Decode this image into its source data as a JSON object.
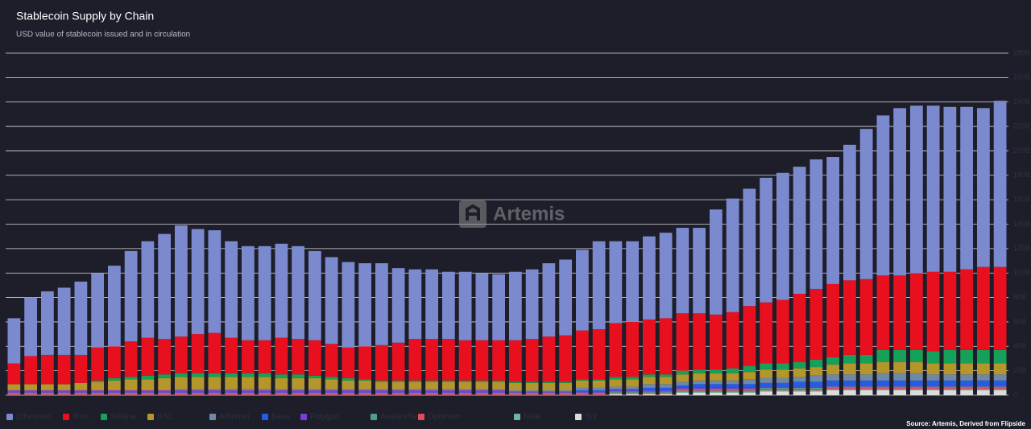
{
  "chart_data": {
    "type": "stacked_bar",
    "title": "Stablecoin Supply by Chain",
    "subtitle": "USD value of stablecoin issued and in circulation",
    "source": "Source: Artemis, Derived from Flipside",
    "watermark": "Artemis",
    "ylim": [
      0,
      280
    ],
    "yticks": [
      {
        "value": 0,
        "label": "0"
      },
      {
        "value": 20,
        "label": "20B"
      },
      {
        "value": 40,
        "label": "40B"
      },
      {
        "value": 60,
        "label": "60B"
      },
      {
        "value": 80,
        "label": "80B"
      },
      {
        "value": 100,
        "label": "100B"
      },
      {
        "value": 120,
        "label": "120B"
      },
      {
        "value": 140,
        "label": "140B"
      },
      {
        "value": 160,
        "label": "160B"
      },
      {
        "value": 180,
        "label": "180B"
      },
      {
        "value": 200,
        "label": "200B"
      },
      {
        "value": 220,
        "label": "220B"
      },
      {
        "value": 240,
        "label": "240B"
      },
      {
        "value": 260,
        "label": "260B"
      },
      {
        "value": 280,
        "label": "280B"
      }
    ],
    "grid": true,
    "series": [
      {
        "name": "Ethereum",
        "color": "#7b8acf",
        "values": [
          37,
          48,
          52,
          55,
          60,
          61,
          66,
          74,
          79,
          86,
          91,
          86,
          84,
          79,
          77,
          77,
          77,
          76,
          73,
          71,
          70,
          68,
          67,
          61,
          57,
          57,
          55,
          56,
          55,
          54,
          56,
          57,
          60,
          62,
          66,
          72,
          67,
          66,
          68,
          70,
          70,
          70,
          86,
          93,
          96,
          102,
          104,
          104,
          106,
          104,
          111,
          123,
          131,
          137,
          137,
          136,
          135,
          133,
          130,
          136
        ]
      },
      {
        "name": "Tron",
        "color": "#e8101f",
        "values": [
          17,
          23,
          24,
          24,
          23,
          27,
          26,
          29,
          31,
          29,
          30,
          32,
          33,
          29,
          27,
          27,
          30,
          29,
          29,
          27,
          25,
          27,
          29,
          31,
          34,
          34,
          34,
          33,
          33,
          33,
          34,
          35,
          37,
          38,
          40,
          41,
          44,
          45,
          45,
          46,
          47,
          46,
          45,
          46,
          49,
          50,
          52,
          56,
          58,
          60,
          61,
          62,
          61,
          61,
          63,
          65,
          64,
          66,
          68,
          68
        ]
      },
      {
        "name": "Solana",
        "color": "#17a05a",
        "values": [
          0,
          0,
          0,
          0,
          0,
          1,
          2,
          2,
          3,
          3,
          3,
          3,
          3,
          3,
          3,
          3,
          3,
          3,
          2,
          2,
          2,
          1,
          1,
          1,
          1,
          1,
          1,
          1,
          1,
          1,
          1,
          1,
          1,
          1,
          1,
          1,
          2,
          2,
          2,
          2,
          3,
          3,
          3,
          4,
          5,
          5,
          5,
          5,
          6,
          6,
          7,
          7,
          10,
          10,
          10,
          10,
          11,
          11,
          11,
          11
        ]
      },
      {
        "name": "BSC",
        "color": "#b5962b",
        "values": [
          5,
          5,
          5,
          5,
          6,
          7,
          8,
          9,
          9,
          10,
          10,
          10,
          10,
          10,
          10,
          10,
          9,
          9,
          9,
          8,
          7,
          7,
          6,
          6,
          6,
          6,
          6,
          6,
          6,
          6,
          6,
          6,
          6,
          6,
          6,
          6,
          6,
          6,
          6,
          6,
          6,
          6,
          6,
          6,
          6,
          7,
          7,
          7,
          7,
          8,
          9,
          9,
          9,
          9,
          9,
          9,
          9,
          9,
          9,
          9
        ]
      },
      {
        "name": "Arbitrum",
        "color": "#7088a8",
        "values": [
          0,
          0,
          0,
          0,
          0,
          0,
          0,
          0,
          0,
          0,
          1,
          1,
          1,
          1,
          1,
          1,
          1,
          1,
          1,
          1,
          1,
          1,
          1,
          1,
          1,
          1,
          1,
          1,
          1,
          1,
          1,
          1,
          1,
          1,
          2,
          2,
          2,
          2,
          3,
          3,
          3,
          3,
          3,
          3,
          4,
          4,
          4,
          4,
          5,
          5,
          5,
          5,
          6,
          6,
          6,
          5,
          5,
          5,
          5,
          5
        ]
      },
      {
        "name": "Base",
        "color": "#1f5fe8",
        "values": [
          0,
          0,
          0,
          0,
          0,
          0,
          0,
          0,
          0,
          0,
          0,
          0,
          0,
          0,
          0,
          0,
          0,
          0,
          0,
          0,
          0,
          0,
          0,
          0,
          0,
          0,
          0,
          0,
          0,
          0,
          0,
          0,
          0,
          0,
          1,
          1,
          1,
          1,
          2,
          2,
          2,
          3,
          3,
          3,
          3,
          3,
          3,
          4,
          4,
          4,
          4,
          4,
          4,
          4,
          4,
          4,
          4,
          4,
          4,
          4
        ]
      },
      {
        "name": "Polygon",
        "color": "#7a3fd8",
        "values": [
          2,
          2,
          2,
          2,
          2,
          2,
          2,
          2,
          2,
          2,
          2,
          2,
          2,
          2,
          2,
          2,
          2,
          2,
          2,
          2,
          2,
          2,
          2,
          2,
          2,
          2,
          2,
          2,
          2,
          2,
          1,
          1,
          1,
          1,
          1,
          1,
          1,
          1,
          1,
          1,
          1,
          1,
          1,
          1,
          1,
          1,
          1,
          1,
          1,
          1,
          1,
          1,
          1,
          1,
          1,
          1,
          1,
          1,
          1,
          1
        ]
      },
      {
        "name": "Avalanche",
        "color": "#4c9f8a",
        "values": [
          1,
          1,
          1,
          1,
          1,
          1,
          1,
          1,
          1,
          1,
          1,
          1,
          1,
          1,
          1,
          1,
          1,
          1,
          1,
          1,
          1,
          1,
          1,
          1,
          1,
          1,
          1,
          1,
          1,
          1,
          1,
          1,
          1,
          1,
          1,
          1,
          1,
          1,
          1,
          1,
          1,
          1,
          1,
          1,
          1,
          1,
          1,
          1,
          1,
          1,
          1,
          1,
          1,
          1,
          1,
          1,
          1,
          1,
          1,
          1
        ]
      },
      {
        "name": "Optimism",
        "color": "#e04c5a",
        "values": [
          1,
          1,
          1,
          1,
          1,
          1,
          1,
          1,
          1,
          1,
          1,
          1,
          1,
          1,
          1,
          1,
          1,
          1,
          1,
          1,
          1,
          1,
          1,
          1,
          1,
          1,
          1,
          1,
          1,
          1,
          1,
          1,
          1,
          1,
          1,
          1,
          1,
          1,
          1,
          1,
          1,
          1,
          1,
          1,
          1,
          1,
          1,
          1,
          1,
          1,
          1,
          1,
          1,
          1,
          1,
          1,
          1,
          1,
          1,
          1
        ]
      },
      {
        "name": "Near",
        "color": "#6fb59a",
        "values": [
          0,
          0,
          0,
          0,
          0,
          0,
          0,
          0,
          0,
          0,
          0,
          0,
          0,
          0,
          0,
          0,
          0,
          0,
          0,
          0,
          0,
          0,
          0,
          0,
          0,
          0,
          0,
          0,
          0,
          0,
          0,
          0,
          0,
          0,
          0,
          0,
          0,
          0,
          0,
          0,
          1,
          1,
          1,
          1,
          1,
          1,
          1,
          1,
          1,
          1,
          1,
          1,
          1,
          1,
          1,
          1,
          1,
          1,
          1,
          1
        ]
      },
      {
        "name": "Sui",
        "color": "#dcdcdc",
        "values": [
          0,
          0,
          0,
          0,
          0,
          0,
          0,
          0,
          0,
          0,
          0,
          0,
          0,
          0,
          0,
          0,
          0,
          0,
          0,
          0,
          0,
          0,
          0,
          0,
          0,
          0,
          0,
          0,
          0,
          0,
          0,
          0,
          0,
          0,
          0,
          0,
          1,
          1,
          1,
          1,
          2,
          2,
          2,
          2,
          2,
          3,
          3,
          3,
          3,
          4,
          4,
          4,
          4,
          4,
          4,
          4,
          4,
          4,
          4,
          4
        ]
      }
    ]
  }
}
